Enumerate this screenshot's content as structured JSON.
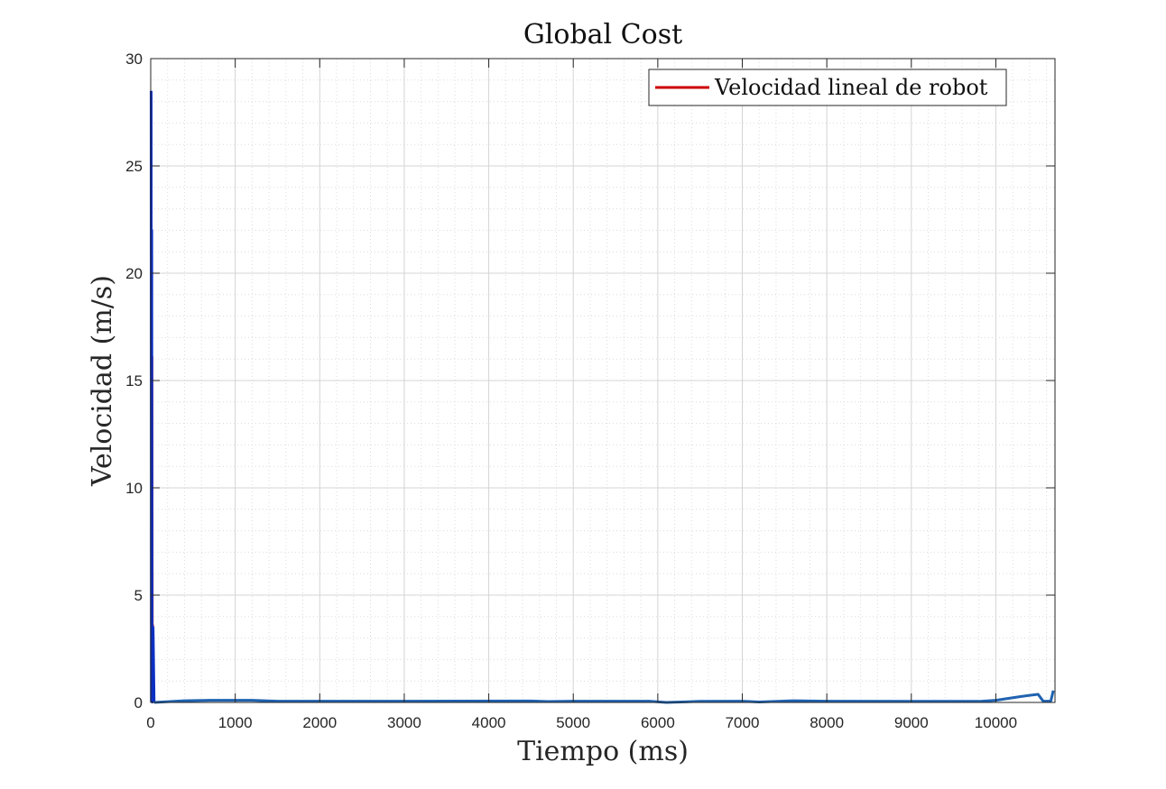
{
  "chart_data": {
    "type": "line",
    "title": "Global Cost",
    "xlabel": "Tiempo (ms)",
    "ylabel": "Velocidad (m/s)",
    "xlim": [
      0,
      10700
    ],
    "ylim": [
      0,
      30
    ],
    "x_ticks": [
      0,
      1000,
      2000,
      3000,
      4000,
      5000,
      6000,
      7000,
      8000,
      9000,
      10000
    ],
    "y_ticks": [
      0,
      5,
      10,
      15,
      20,
      25,
      30
    ],
    "grid": true,
    "minor_grid": true,
    "legend": {
      "placement": "top-right",
      "entries": [
        "Velocidad lineal de robot"
      ]
    },
    "series": [
      {
        "name": "Velocidad lineal de robot",
        "color": "#cc0000",
        "points": [
          [
            10,
            3.5
          ],
          [
            14,
            16.1
          ],
          [
            18,
            3.4
          ],
          [
            22,
            3.6
          ],
          [
            25,
            0.1
          ]
        ]
      },
      {
        "color": "#0b2fc2",
        "points": [
          [
            5,
            28.5
          ],
          [
            8,
            0.05
          ],
          [
            12,
            22.0
          ],
          [
            16,
            0.05
          ],
          [
            20,
            0.02
          ],
          [
            28,
            3.5
          ],
          [
            40,
            0.0
          ]
        ]
      },
      {
        "color": "#1f62b0",
        "points": [
          [
            40,
            0.0
          ],
          [
            400,
            0.08
          ],
          [
            700,
            0.1
          ],
          [
            1200,
            0.1
          ],
          [
            1500,
            0.06
          ],
          [
            3000,
            0.06
          ],
          [
            4500,
            0.07
          ],
          [
            4700,
            0.04
          ],
          [
            5000,
            0.06
          ],
          [
            5900,
            0.06
          ],
          [
            6100,
            0.0
          ],
          [
            6500,
            0.05
          ],
          [
            7000,
            0.06
          ],
          [
            7200,
            0.02
          ],
          [
            7600,
            0.08
          ],
          [
            8000,
            0.06
          ],
          [
            9800,
            0.05
          ],
          [
            10000,
            0.1
          ],
          [
            10300,
            0.28
          ],
          [
            10500,
            0.38
          ],
          [
            10560,
            0.06
          ],
          [
            10650,
            0.06
          ],
          [
            10680,
            0.55
          ]
        ]
      }
    ]
  }
}
